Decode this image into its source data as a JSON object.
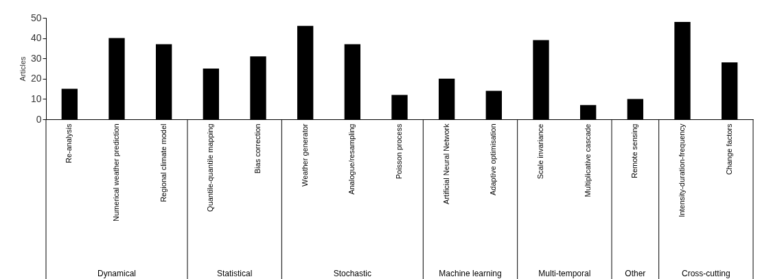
{
  "chart_data": {
    "type": "bar",
    "ylabel": "Articles",
    "categories": [
      "Re-analysis",
      "Numerical weather prediction",
      "Regional climate model",
      "Quantile-quantile mapping",
      "Bias correction",
      "Weather generator",
      "Analogue/resampling",
      "Poisson process",
      "Artificial Neural Network",
      "Adaptive optimisation",
      "Scale invariance",
      "Multiplicative cascade",
      "Remote sensing",
      "Intensity-duration-frequency",
      "Change factors"
    ],
    "values": [
      15,
      40,
      37,
      25,
      31,
      46,
      37,
      12,
      20,
      14,
      39,
      7,
      10,
      48,
      28
    ],
    "color": "#000000",
    "ylim": [
      0,
      50
    ],
    "yticks": [
      0,
      10,
      20,
      30,
      40,
      50
    ],
    "grid": false,
    "annotations": [
      "Dynamical",
      "Statistical",
      "Stochastic",
      "Machine learning",
      "Multi-temporal",
      "Other",
      "Cross-cutting"
    ]
  }
}
